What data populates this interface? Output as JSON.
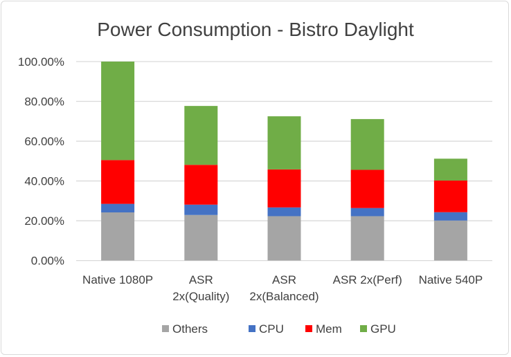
{
  "chart_data": {
    "type": "bar",
    "stacked": true,
    "title": "Power Consumption  - Bistro Daylight",
    "categories": [
      [
        "Native 1080P"
      ],
      [
        "ASR",
        "2x(Quality)"
      ],
      [
        "ASR",
        "2x(Balanced)"
      ],
      [
        "ASR 2x(Perf)"
      ],
      [
        "Native 540P"
      ]
    ],
    "series": [
      {
        "name": "Others",
        "color": "#a5a5a5",
        "values": [
          24.2,
          22.9,
          22.3,
          22.3,
          20.1
        ]
      },
      {
        "name": "CPU",
        "color": "#4472c4",
        "values": [
          4.3,
          5.2,
          4.4,
          4.1,
          4.2
        ]
      },
      {
        "name": "Mem",
        "color": "#ff0000",
        "values": [
          22.0,
          20.0,
          19.1,
          19.2,
          15.9
        ]
      },
      {
        "name": "GPU",
        "color": "#70ad47",
        "values": [
          49.5,
          29.6,
          26.7,
          25.5,
          11.0
        ]
      }
    ],
    "yticks": [
      "0.00%",
      "20.00%",
      "40.00%",
      "60.00%",
      "80.00%",
      "100.00%"
    ],
    "ylim": [
      0,
      100
    ],
    "grid": true,
    "legend": "bottom"
  }
}
